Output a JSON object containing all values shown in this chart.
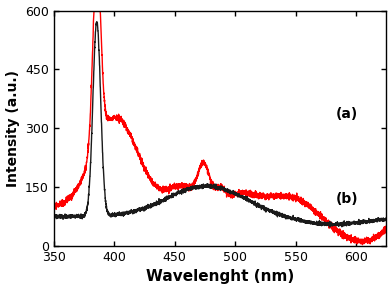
{
  "title": "",
  "xlabel": "Wavelenght (nm)",
  "ylabel": "Intensity (a.u.)",
  "xlim": [
    350,
    625
  ],
  "ylim": [
    0,
    600
  ],
  "xticks": [
    350,
    400,
    450,
    500,
    550,
    600
  ],
  "yticks": [
    0,
    150,
    300,
    450,
    600
  ],
  "label_a": "(a)",
  "label_b": "(b)",
  "color_a": "#ff0000",
  "color_b": "#1a1a1a",
  "linewidth": 1.0,
  "background_color": "#ffffff"
}
